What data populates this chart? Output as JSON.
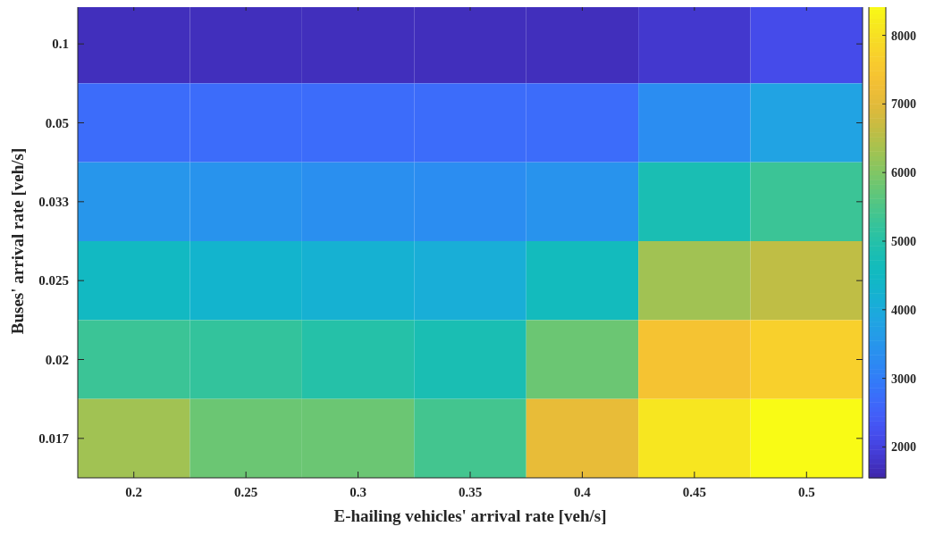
{
  "chart_data": {
    "type": "heatmap",
    "xlabel": "E-hailing vehicles' arrival rate [veh/s]",
    "ylabel": "Buses' arrival rate [veh/s]",
    "categories": [
      "0.2",
      "0.25",
      "0.3",
      "0.35",
      "0.4",
      "0.45",
      "0.5"
    ],
    "y_categories": [
      "0.1",
      "0.05",
      "0.033",
      "0.025",
      "0.02",
      "0.017"
    ],
    "cells": [
      [
        1700,
        1700,
        1700,
        1700,
        1700,
        1850,
        2150
      ],
      [
        2700,
        2700,
        2700,
        2700,
        2700,
        3300,
        3800
      ],
      [
        3500,
        3450,
        3350,
        3300,
        3450,
        4800,
        5300
      ],
      [
        4500,
        4300,
        4200,
        4100,
        4600,
        6300,
        6600
      ],
      [
        5300,
        5200,
        5000,
        4800,
        5800,
        7400,
        7700
      ],
      [
        6300,
        5800,
        5800,
        5400,
        7100,
        8100,
        8450
      ]
    ],
    "clim": [
      1550,
      8450
    ],
    "cticks": [
      2000,
      3000,
      4000,
      5000,
      6000,
      7000,
      8000
    ]
  }
}
